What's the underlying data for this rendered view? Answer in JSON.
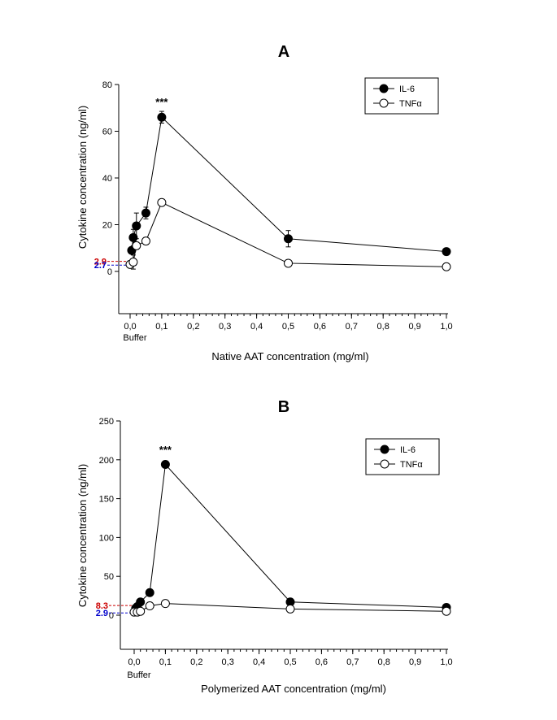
{
  "chart_data": [
    {
      "type": "line",
      "panel_label": "A",
      "title": "",
      "ylabel": "Cytokine concentration (ng/ml)",
      "xlabel": "Native AAT concentration (mg/ml)",
      "ylim": [
        -20,
        80
      ],
      "xlim": [
        -0.03,
        1.0
      ],
      "y_ticks": [
        0,
        20,
        40,
        60,
        80
      ],
      "y_tick_labels": [
        "0",
        "20",
        "40",
        "60",
        "80"
      ],
      "x_ticks": [
        0.0,
        0.1,
        0.2,
        0.3,
        0.4,
        0.5,
        0.6,
        0.7,
        0.8,
        0.9,
        1.0
      ],
      "x_tick_labels": [
        "0,0",
        "0,1",
        "0,2",
        "0,3",
        "0,4",
        "0,5",
        "0,6",
        "0,7",
        "0,8",
        "0,9",
        "1,0"
      ],
      "buffer_label": "Buffer",
      "legend": {
        "position": "top-right",
        "entries": [
          "IL-6",
          "TNFα"
        ]
      },
      "annotations": [
        {
          "text": "***",
          "x": 0.1,
          "y": 71
        }
      ],
      "baselines": [
        {
          "label": "2.9",
          "value": 2.9,
          "color": "#cc0000"
        },
        {
          "label": "2.7",
          "value": 2.7,
          "color": "#0000cc"
        }
      ],
      "series": [
        {
          "name": "IL-6",
          "marker": "filled",
          "x": [
            0.005,
            0.01,
            0.02,
            0.05,
            0.1,
            0.5,
            1.0
          ],
          "y": [
            9,
            14.5,
            19.5,
            25,
            66,
            14,
            8.5
          ],
          "err": [
            0.8,
            3.5,
            5.5,
            2.5,
            2.5,
            3.5,
            0.8
          ]
        },
        {
          "name": "TNFα",
          "marker": "open",
          "x": [
            0.0,
            0.01,
            0.02,
            0.05,
            0.1,
            0.5,
            1.0
          ],
          "y": [
            3,
            4,
            11,
            13,
            29.5,
            3.5,
            2
          ],
          "err": [
            0.5,
            3.0,
            1.5,
            1.5,
            1.0,
            0.5,
            0.5
          ]
        }
      ]
    },
    {
      "type": "line",
      "panel_label": "B",
      "title": "",
      "ylabel": "Cytokine concentration (ng/ml)",
      "xlabel": "Polymerized AAT concentration (mg/ml)",
      "ylim": [
        -50,
        250
      ],
      "xlim": [
        -0.03,
        1.0
      ],
      "y_ticks": [
        0,
        50,
        100,
        150,
        200,
        250
      ],
      "y_tick_labels": [
        "0",
        "50",
        "100",
        "150",
        "200",
        "250"
      ],
      "x_ticks": [
        0.0,
        0.1,
        0.2,
        0.3,
        0.4,
        0.5,
        0.6,
        0.7,
        0.8,
        0.9,
        1.0
      ],
      "x_tick_labels": [
        "0,0",
        "0,1",
        "0,2",
        "0,3",
        "0,4",
        "0,5",
        "0,6",
        "0,7",
        "0,8",
        "0,9",
        "1,0"
      ],
      "buffer_label": "Buffer",
      "legend": {
        "position": "top-right",
        "entries": [
          "IL-6",
          "TNFα"
        ]
      },
      "annotations": [
        {
          "text": "***",
          "x": 0.1,
          "y": 208
        }
      ],
      "baselines": [
        {
          "label": "8.3",
          "value": 8.3,
          "color": "#cc0000"
        },
        {
          "label": "2.9",
          "value": 2.9,
          "color": "#0000cc"
        }
      ],
      "series": [
        {
          "name": "IL-6",
          "marker": "filled",
          "x": [
            0.005,
            0.01,
            0.02,
            0.05,
            0.1,
            0.5,
            1.0
          ],
          "y": [
            9,
            11,
            17,
            29,
            194,
            17,
            10
          ],
          "err": [
            0.5,
            0.5,
            1.0,
            1.5,
            4.0,
            1.0,
            0.5
          ]
        },
        {
          "name": "TNFα",
          "marker": "open",
          "x": [
            0.0,
            0.01,
            0.02,
            0.05,
            0.1,
            0.5,
            1.0
          ],
          "y": [
            4,
            4,
            5,
            12,
            15,
            8,
            5
          ],
          "err": [
            0.5,
            0.5,
            0.5,
            0.5,
            0.5,
            0.5,
            0.5
          ]
        }
      ]
    }
  ]
}
